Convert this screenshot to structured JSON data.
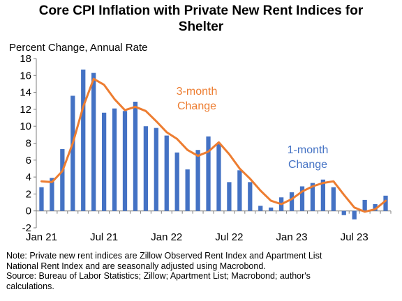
{
  "title_line1": "Core CPI Inflation with Private New Rent Indices for",
  "title_line2": "Shelter",
  "note_lines": [
    "Note: Private new rent indices are Zillow Observed Rent Index and Apartment List",
    "National Rent Index and are seasonally adjusted using Macrobond.",
    "Source: Bureau of Labor Statistics; Zillow; Apartment List; Macrobond; author's",
    "calculations."
  ],
  "colors": {
    "bars": "#4472C4",
    "line": "#ED7D31",
    "axis": "#7f7f7f"
  },
  "chart_data": {
    "type": "bar+line",
    "ylabel": "Percent Change, Annual Rate",
    "ylim": [
      -2,
      18
    ],
    "yticks": [
      -2,
      0,
      2,
      4,
      6,
      8,
      10,
      12,
      14,
      16,
      18
    ],
    "grid": false,
    "categories": [
      "Jan 21",
      "Feb 21",
      "Mar 21",
      "Apr 21",
      "May 21",
      "Jun 21",
      "Jul 21",
      "Aug 21",
      "Sep 21",
      "Oct 21",
      "Nov 21",
      "Dec 21",
      "Jan 22",
      "Feb 22",
      "Mar 22",
      "Apr 22",
      "May 22",
      "Jun 22",
      "Jul 22",
      "Aug 22",
      "Sep 22",
      "Oct 22",
      "Nov 22",
      "Dec 22",
      "Jan 23",
      "Feb 23",
      "Mar 23",
      "Apr 23",
      "May 23",
      "Jun 23",
      "Jul 23",
      "Aug 23",
      "Sep 23",
      "Oct 23"
    ],
    "xtick_labels": [
      {
        "index": 0,
        "label": "Jan 21"
      },
      {
        "index": 6,
        "label": "Jul 21"
      },
      {
        "index": 12,
        "label": "Jan 22"
      },
      {
        "index": 18,
        "label": "Jul 22"
      },
      {
        "index": 24,
        "label": "Jan 23"
      },
      {
        "index": 30,
        "label": "Jul 23"
      }
    ],
    "series": [
      {
        "name": "1-month Change",
        "type": "bar",
        "values": [
          2.8,
          3.9,
          7.3,
          13.6,
          16.7,
          16.3,
          11.6,
          12.1,
          11.8,
          12.9,
          10.0,
          9.8,
          8.9,
          6.9,
          4.9,
          7.2,
          8.8,
          7.9,
          3.4,
          4.8,
          3.4,
          0.6,
          0.4,
          1.6,
          2.2,
          2.9,
          3.3,
          3.7,
          2.8,
          -0.5,
          -1.0,
          1.3,
          0.8,
          1.8
        ]
      },
      {
        "name": "3-month Change",
        "type": "line",
        "values": [
          3.5,
          3.4,
          4.7,
          8.0,
          12.3,
          15.6,
          14.9,
          13.2,
          11.9,
          12.3,
          11.8,
          10.6,
          9.3,
          8.5,
          7.2,
          6.5,
          7.0,
          8.1,
          6.7,
          5.0,
          3.8,
          2.4,
          1.2,
          0.8,
          1.4,
          2.3,
          2.9,
          3.3,
          3.5,
          1.9,
          0.4,
          -0.1,
          0.2,
          1.2
        ]
      }
    ],
    "annotations": [
      {
        "series": "3-month Change",
        "lines": [
          "3-month",
          "Change"
        ]
      },
      {
        "series": "1-month Change",
        "lines": [
          "1-month",
          "Change"
        ]
      }
    ]
  }
}
